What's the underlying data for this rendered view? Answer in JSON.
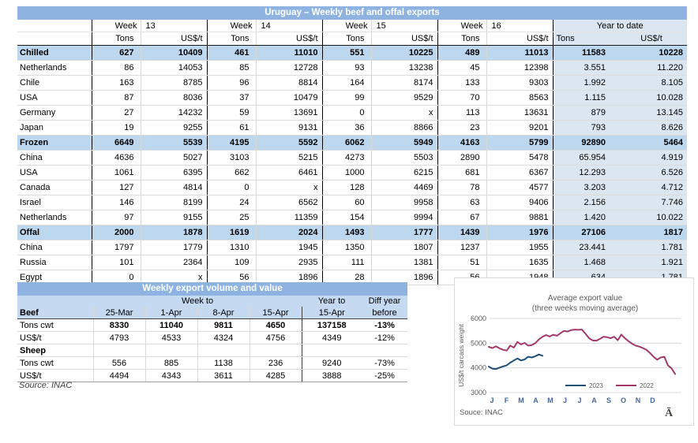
{
  "export_table": {
    "title": "Uruguay – Weekly beef and offal exports",
    "week_label": "Week",
    "weeks": [
      "13",
      "14",
      "15",
      "16"
    ],
    "ytd_label": "Year to date",
    "tons_label": "Tons",
    "usd_label": "US$/t",
    "rows": [
      {
        "label": "Chilled",
        "section": true,
        "values": [
          "627",
          "10409",
          "461",
          "11010",
          "551",
          "10225",
          "489",
          "11013",
          "11583",
          "10228"
        ]
      },
      {
        "label": "Netherlands",
        "section": false,
        "values": [
          "86",
          "14053",
          "85",
          "12728",
          "93",
          "13238",
          "45",
          "12398",
          "3.551",
          "11.220"
        ]
      },
      {
        "label": "Chile",
        "section": false,
        "values": [
          "163",
          "8785",
          "96",
          "8814",
          "164",
          "8174",
          "133",
          "9303",
          "1.992",
          "8.105"
        ]
      },
      {
        "label": "USA",
        "section": false,
        "values": [
          "87",
          "8036",
          "37",
          "10479",
          "99",
          "9529",
          "70",
          "8563",
          "1.115",
          "10.028"
        ]
      },
      {
        "label": "Germany",
        "section": false,
        "values": [
          "27",
          "14232",
          "59",
          "13691",
          "0",
          "x",
          "113",
          "13631",
          "879",
          "13.145"
        ]
      },
      {
        "label": "Japan",
        "section": false,
        "values": [
          "19",
          "9255",
          "61",
          "9131",
          "36",
          "8866",
          "23",
          "9201",
          "793",
          "8.626"
        ]
      },
      {
        "label": "Frozen",
        "section": true,
        "values": [
          "6649",
          "5539",
          "4195",
          "5592",
          "6062",
          "5949",
          "4163",
          "5799",
          "92890",
          "5464"
        ]
      },
      {
        "label": "China",
        "section": false,
        "values": [
          "4636",
          "5027",
          "3103",
          "5215",
          "4273",
          "5503",
          "2890",
          "5478",
          "65.954",
          "4.919"
        ]
      },
      {
        "label": "USA",
        "section": false,
        "values": [
          "1061",
          "6395",
          "662",
          "6461",
          "1000",
          "6215",
          "681",
          "6367",
          "12.293",
          "6.526"
        ]
      },
      {
        "label": "Canada",
        "section": false,
        "values": [
          "127",
          "4814",
          "0",
          "x",
          "128",
          "4469",
          "78",
          "4577",
          "3.203",
          "4.712"
        ]
      },
      {
        "label": "Israel",
        "section": false,
        "values": [
          "146",
          "8199",
          "24",
          "6562",
          "60",
          "9958",
          "63",
          "9406",
          "2.156",
          "7.746"
        ]
      },
      {
        "label": "Netherlands",
        "section": false,
        "values": [
          "97",
          "9155",
          "25",
          "11359",
          "154",
          "9994",
          "67",
          "9881",
          "1.420",
          "10.022"
        ]
      },
      {
        "label": "Offal",
        "section": true,
        "values": [
          "2000",
          "1878",
          "1619",
          "2024",
          "1493",
          "1777",
          "1439",
          "1976",
          "27106",
          "1817"
        ]
      },
      {
        "label": "China",
        "section": false,
        "values": [
          "1797",
          "1779",
          "1310",
          "1945",
          "1350",
          "1807",
          "1237",
          "1955",
          "23.441",
          "1.781"
        ]
      },
      {
        "label": "Russia",
        "section": false,
        "values": [
          "101",
          "2364",
          "109",
          "2935",
          "111",
          "1381",
          "51",
          "1635",
          "1.468",
          "1.921"
        ]
      },
      {
        "label": "Egypt",
        "section": false,
        "values": [
          "0",
          "x",
          "56",
          "1896",
          "28",
          "1896",
          "56",
          "1948",
          "634",
          "1.781"
        ]
      }
    ]
  },
  "weekly_table": {
    "title": "Weekly export volume and value",
    "week_to_label": "Week to",
    "year_to_label": "Year to",
    "diff_label_line1": "Diff year",
    "diff_label_line2": "before",
    "beef_label": "Beef",
    "dates": [
      "25-Mar",
      "1-Apr",
      "8-Apr",
      "15-Apr"
    ],
    "year_to_date": "15-Apr",
    "rows": [
      {
        "label": "Tons cwt",
        "bold_label": false,
        "bold_values": true,
        "values": [
          "8330",
          "11040",
          "9811",
          "4650",
          "137158",
          "-13%"
        ]
      },
      {
        "label": "US$/t",
        "bold_label": false,
        "bold_values": false,
        "values": [
          "4793",
          "4533",
          "4324",
          "4756",
          "4349",
          "-12%"
        ]
      },
      {
        "label": "Sheep",
        "bold_label": true,
        "bold_values": false,
        "values": [
          "",
          "",
          "",
          "",
          "",
          ""
        ]
      },
      {
        "label": "Tons cwt",
        "bold_label": false,
        "bold_values": false,
        "values": [
          "556",
          "885",
          "1138",
          "236",
          "9240",
          "-73%"
        ]
      },
      {
        "label": "US$/t",
        "bold_label": false,
        "bold_values": false,
        "values": [
          "4494",
          "4343",
          "3611",
          "4285",
          "3888",
          "-25%"
        ]
      }
    ],
    "source": "Source: INAC"
  },
  "chart_data": {
    "type": "line",
    "title_line1": "Average export value",
    "title_line2": "(three weeks moving average)",
    "ylabel": "US$/t carcass weight",
    "ylim": [
      3000,
      6000
    ],
    "yticks": [
      3000,
      4000,
      5000,
      6000
    ],
    "xticklabels": [
      "J",
      "F",
      "M",
      "A",
      "M",
      "J",
      "J",
      "A",
      "S",
      "O",
      "N",
      "D"
    ],
    "grid": true,
    "legend_position": "bottom-inside",
    "text_color": "#595959",
    "axis_label_color": "#44679E",
    "source": "Souce: INAC",
    "watermark": "Ā",
    "series": [
      {
        "name": "2023",
        "color": "#1F4E79",
        "values": [
          4050,
          3970,
          3950,
          4010,
          4060,
          4100,
          4210,
          4300,
          4380,
          4300,
          4340,
          4450,
          4420,
          4470,
          4540,
          4490
        ]
      },
      {
        "name": "2022",
        "color": "#A2396B",
        "values": [
          4850,
          4800,
          4870,
          4790,
          4730,
          4700,
          4900,
          4820,
          5050,
          4950,
          5010,
          4900,
          4920,
          5000,
          5150,
          5260,
          5330,
          5270,
          5340,
          5300,
          5400,
          5500,
          5470,
          5530,
          5550,
          5540,
          5550,
          5380,
          5200,
          5110,
          5100,
          5170,
          5260,
          5240,
          5200,
          5260,
          5120,
          5350,
          5200,
          5080,
          4980,
          4900,
          4860,
          4800,
          4730,
          4600,
          4450,
          4330,
          4420,
          4450,
          4100,
          3980,
          3750
        ]
      }
    ]
  }
}
